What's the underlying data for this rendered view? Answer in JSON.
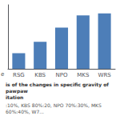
{
  "chart_data": {
    "type": "bar",
    "title": "is of the changes in specific gravity of pawpaw\nitation",
    "subtitle": ":10%, KBS 80%:20, NPO 70%:30%, MKS 60%:40%, W7...",
    "annotations": [
      "e"
    ],
    "categories": [
      "RSG",
      "KBS",
      "NPO",
      "MKS",
      "WRS"
    ],
    "values": [
      0.22,
      0.38,
      0.58,
      0.75,
      0.78
    ],
    "color": "#4d7eb8",
    "ylim": [
      0,
      0.9
    ],
    "yticks": [],
    "grid": false,
    "tick_labels": "x"
  }
}
